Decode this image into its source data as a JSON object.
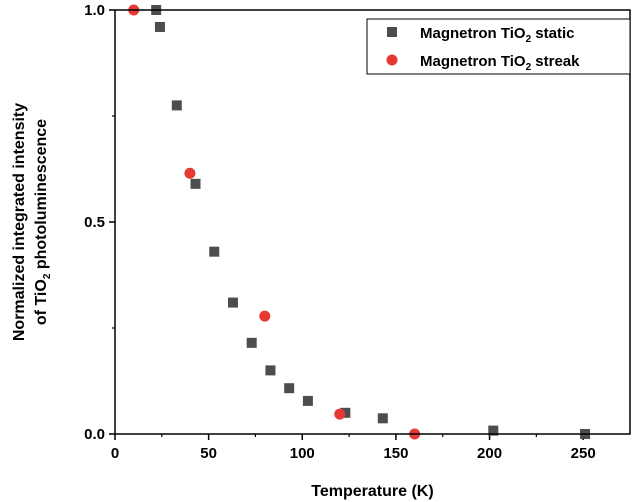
{
  "chart_data": {
    "type": "scatter",
    "title": "",
    "xlabel": "Temperature (K)",
    "ylabel": {
      "line1": "Normalized integrated intensity",
      "line2_prefix": "of TiO",
      "line2_sub": "2",
      "line2_suffix": " photoluminescence"
    },
    "xlim": [
      0,
      275
    ],
    "ylim": [
      0,
      1.0
    ],
    "xticks": [
      0,
      50,
      100,
      150,
      200,
      250
    ],
    "xtick_labels": [
      "0",
      "50",
      "100",
      "150",
      "200",
      "250"
    ],
    "yticks": [
      0,
      0.5,
      1.0
    ],
    "ytick_labels": [
      "0.0",
      "0.5",
      "1.0"
    ],
    "grid": false,
    "legend_position": "top-right",
    "series": [
      {
        "name_prefix": "Magnetron TiO",
        "name_sub": "2",
        "name_suffix": " static",
        "marker": "square",
        "color": "#4d4d4d",
        "x": [
          22,
          24,
          33,
          43,
          53,
          63,
          73,
          83,
          93,
          103,
          123,
          143,
          202,
          251
        ],
        "y": [
          1.0,
          0.96,
          0.775,
          0.59,
          0.43,
          0.31,
          0.215,
          0.15,
          0.108,
          0.078,
          0.05,
          0.037,
          0.008,
          0.0
        ]
      },
      {
        "name_prefix": "Magnetron TiO",
        "name_sub": "2",
        "name_suffix": " streak",
        "marker": "circle",
        "color": "#e53935",
        "x": [
          10,
          40,
          80,
          120,
          160
        ],
        "y": [
          1.0,
          0.615,
          0.278,
          0.047,
          0.0
        ]
      }
    ]
  }
}
